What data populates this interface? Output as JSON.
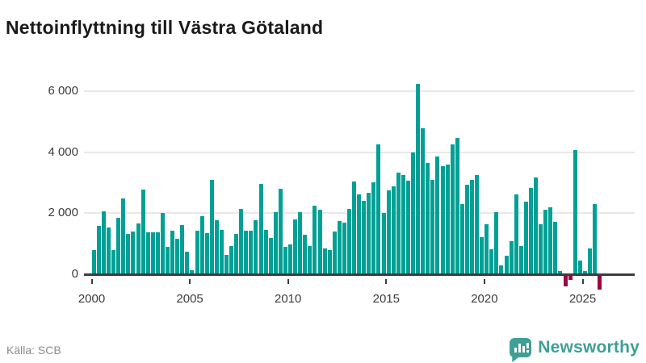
{
  "header": {
    "title": "Nettoinflyttning till Västra Götaland"
  },
  "footer": {
    "source": "Källa: SCB",
    "brand_name": "Newsworthy",
    "brand_color": "#3f9f97"
  },
  "colors": {
    "positive_bar": "#00A095",
    "negative_bar": "#990840",
    "gridline": "#e8e8e8",
    "zero_line": "#3d3d3d",
    "title_text": "#1a1a1a",
    "axis_text": "#3c3c3c",
    "source_text": "#8c8c8c"
  },
  "chart_data": {
    "type": "bar",
    "title": "Nettoinflyttning till Västra Götaland",
    "frequency": "quarterly",
    "x_start_year": 2000,
    "x_end_year": 2025,
    "xlabel": "",
    "ylabel": "",
    "ylim": [
      -600,
      6500
    ],
    "grid": true,
    "legend": "none",
    "yticks": [
      0,
      2000,
      4000,
      6000
    ],
    "ytick_labels": [
      "0",
      "2 000",
      "4 000",
      "6 000"
    ],
    "xticks": [
      2000,
      2005,
      2010,
      2015,
      2020,
      2025
    ],
    "xtick_labels": [
      "2000",
      "2005",
      "2010",
      "2015",
      "2020",
      "2025"
    ],
    "values": [
      770,
      1560,
      2040,
      1510,
      770,
      1820,
      2450,
      1300,
      1380,
      1640,
      2750,
      1340,
      1340,
      1340,
      1980,
      870,
      1400,
      1130,
      1580,
      710,
      100,
      1400,
      1880,
      1310,
      3060,
      1740,
      1440,
      600,
      910,
      1290,
      2110,
      1400,
      1400,
      1750,
      2920,
      1420,
      1150,
      2000,
      2770,
      870,
      950,
      1770,
      2010,
      1280,
      890,
      2230,
      2080,
      810,
      780,
      1380,
      1710,
      1670,
      2120,
      3020,
      2600,
      2370,
      2650,
      2990,
      4220,
      1970,
      2720,
      2850,
      3290,
      3210,
      3030,
      3970,
      6210,
      4750,
      3620,
      3060,
      3830,
      3500,
      3560,
      4230,
      4430,
      2270,
      2900,
      3070,
      3220,
      1180,
      1600,
      800,
      2000,
      270,
      580,
      1050,
      2600,
      900,
      2350,
      2800,
      3150,
      1600,
      2080,
      2160,
      1700,
      90,
      -350,
      -150,
      4050,
      430,
      80,
      830,
      2260,
      -450
    ]
  }
}
